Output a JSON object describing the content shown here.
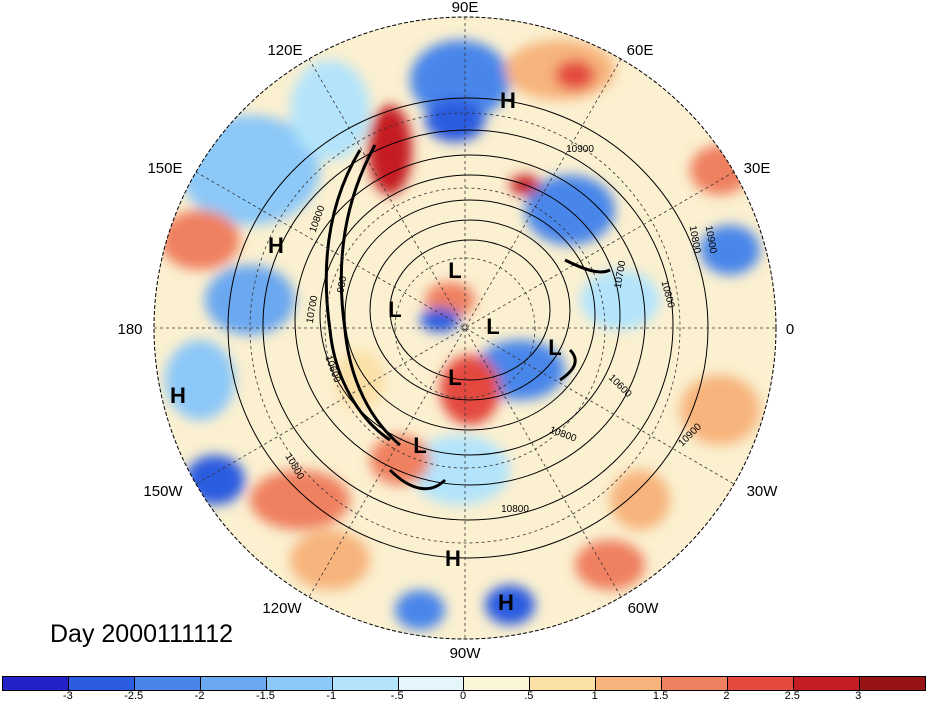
{
  "title": "Day 2000111112",
  "longitude_labels": {
    "deg90E": "90E",
    "deg120E": "120E",
    "deg60E": "60E",
    "deg150E": "150E",
    "deg30E": "30E",
    "deg180": "180",
    "deg0": "0",
    "deg150W": "150W",
    "deg30W": "30W",
    "deg120W": "120W",
    "deg60W": "60W",
    "deg90W": "90W"
  },
  "pressure_centers": [
    {
      "label": "H",
      "name": "high-north-siberia"
    },
    {
      "label": "H",
      "name": "high-west-pacific"
    },
    {
      "label": "H",
      "name": "high-central-pacific"
    },
    {
      "label": "L",
      "name": "low-arctic-1"
    },
    {
      "label": "L",
      "name": "low-arctic-2"
    },
    {
      "label": "L",
      "name": "low-arctic-3"
    },
    {
      "label": "L",
      "name": "low-greenland"
    },
    {
      "label": "L",
      "name": "low-hudson"
    },
    {
      "label": "L",
      "name": "low-north-america"
    },
    {
      "label": "H",
      "name": "high-mexico"
    },
    {
      "label": "H",
      "name": "high-caribbean"
    }
  ],
  "contour_labels": [
    "10900",
    "10800",
    "10700",
    "980",
    "10600",
    "10800",
    "10800",
    "10700",
    "10800",
    "10600",
    "10900",
    "10800",
    "10800",
    "10900"
  ],
  "colorbar": {
    "colors": [
      "#2222c8",
      "#2c5ce0",
      "#4a86ea",
      "#6aa8f0",
      "#8cc8f8",
      "#b4e4fb",
      "#e4f6fc",
      "#fcf6d8",
      "#fbe0a8",
      "#f7b47c",
      "#ef8060",
      "#e44a40",
      "#c41e24",
      "#961414"
    ],
    "ticks": [
      "-3",
      "-2.5",
      "-2",
      "-1.5",
      "-1",
      "-.5",
      "0",
      ".5",
      "1",
      "1.5",
      "2",
      "2.5",
      "3"
    ]
  }
}
